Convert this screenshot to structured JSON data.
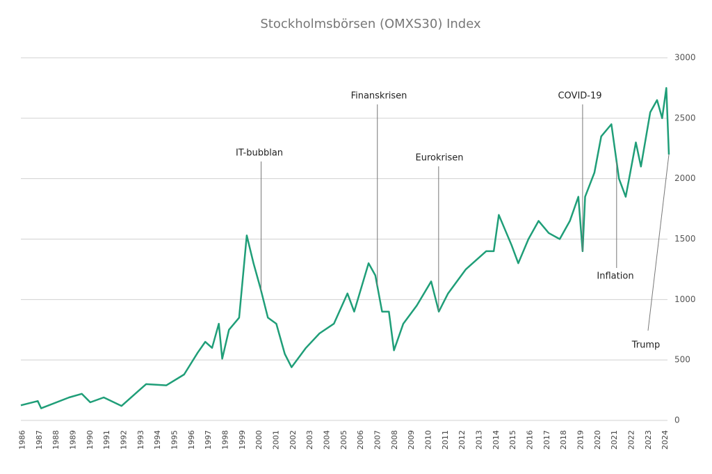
{
  "chart_data": {
    "type": "line",
    "title": "Stockholmsbörsen (OMXS30) Index",
    "x": [
      1985.9,
      1986.9,
      1987.1,
      1988.75,
      1989.5,
      1990,
      1990.8,
      1991.85,
      1992.9,
      1993.3,
      1994.5,
      1995.55,
      1996.35,
      1996.8,
      1997.2,
      1997.6,
      1997.8,
      1998.2,
      1998.8,
      1999.25,
      1999.65,
      2000.05,
      2000.5,
      2001,
      2001.5,
      2001.9,
      2002.75,
      2003.55,
      2004.4,
      2005.2,
      2005.6,
      2006.45,
      2006.85,
      2007.25,
      2007.65,
      2007.95,
      2008.5,
      2009.3,
      2010.15,
      2010.6,
      2011.15,
      2012.2,
      2013.4,
      2013.85,
      2014.15,
      2014.9,
      2015.3,
      2015.9,
      2016.5,
      2017.1,
      2017.75,
      2018.35,
      2018.85,
      2019.1,
      2019.25,
      2019.8,
      2020.2,
      2020.8,
      2021.25,
      2021.65,
      2021.85,
      2022.25,
      2022.55,
      2023.1,
      2023.5,
      2023.8,
      2024.05,
      2024.2
    ],
    "series": [
      {
        "name": "OMXS30",
        "color": "#1f9e78",
        "values": [
          125,
          160,
          100,
          190,
          220,
          150,
          190,
          120,
          250,
          300,
          290,
          380,
          560,
          650,
          600,
          800,
          510,
          750,
          850,
          1530,
          1300,
          1100,
          850,
          800,
          550,
          440,
          600,
          720,
          800,
          1050,
          900,
          1300,
          1200,
          900,
          900,
          580,
          800,
          950,
          1150,
          900,
          1050,
          1250,
          1400,
          1400,
          1700,
          1450,
          1300,
          1500,
          1650,
          1550,
          1500,
          1650,
          1850,
          1400,
          1850,
          2050,
          2350,
          2450,
          2000,
          1850,
          2000,
          2300,
          2100,
          2550,
          2650,
          2500,
          2750,
          2200
        ]
      }
    ],
    "xlim": [
      1985.9,
      2024.2
    ],
    "xticks": [
      1986,
      1987,
      1988,
      1989,
      1990,
      1991,
      1992,
      1993,
      1994,
      1995,
      1996,
      1997,
      1998,
      1999,
      2000,
      2001,
      2002,
      2003,
      2004,
      2005,
      2006,
      2007,
      2008,
      2009,
      2010,
      2011,
      2012,
      2013,
      2014,
      2015,
      2016,
      2017,
      2018,
      2019,
      2020,
      2021,
      2022,
      2023,
      2024
    ],
    "ylim": [
      0,
      3000
    ],
    "yticks": [
      0,
      500,
      1000,
      1500,
      2000,
      2500,
      3000
    ],
    "grid": true,
    "annotations": [
      {
        "text": "IT-bubblan",
        "x": 2000.1
      },
      {
        "text": "Finanskrisen",
        "x": 2006.97
      },
      {
        "text": "Eurokrisen",
        "x": 2010.59
      },
      {
        "text": "COVID-19",
        "x": 2019.1
      },
      {
        "text": "Inflation",
        "x": 2021.11
      },
      {
        "text": "Trump",
        "x": 2024.2
      }
    ]
  }
}
